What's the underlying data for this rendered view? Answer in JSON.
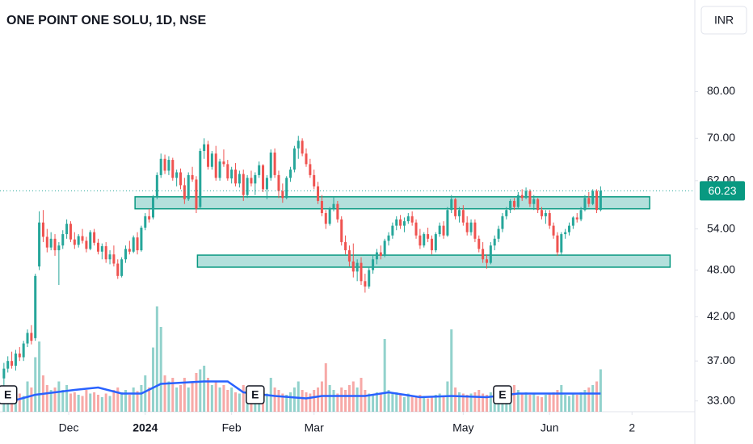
{
  "chart_data": {
    "type": "candlestick",
    "title": "ONE POINT ONE SOLU, 1D, NSE",
    "currency": "INR",
    "log_scale": true,
    "ylim": [
      32,
      104
    ],
    "xlim": [
      -1,
      176
    ],
    "yticks": [
      {
        "value": 33,
        "label": "33.00"
      },
      {
        "value": 37,
        "label": "37.00"
      },
      {
        "value": 42,
        "label": "42.00"
      },
      {
        "value": 48,
        "label": "48.00"
      },
      {
        "value": 54,
        "label": "54.00"
      },
      {
        "value": 62,
        "label": "62.00"
      },
      {
        "value": 70,
        "label": "70.00"
      },
      {
        "value": 80,
        "label": "80.00"
      }
    ],
    "xticks": [
      {
        "value": 16.5,
        "label": "Dec"
      },
      {
        "value": 36,
        "label": "2024",
        "bold": true
      },
      {
        "value": 58,
        "label": "Feb"
      },
      {
        "value": 79,
        "label": "Mar"
      },
      {
        "value": 117,
        "label": "May"
      },
      {
        "value": 139,
        "label": "Jun"
      },
      {
        "value": 160,
        "label": "2"
      }
    ],
    "up_color": "#26a69a",
    "down_color": "#ef5350",
    "candles": [
      [
        35.2,
        36.8,
        34.5,
        36.2
      ],
      [
        36.2,
        37.5,
        35.8,
        37.0
      ],
      [
        37.0,
        38.0,
        36.2,
        36.5
      ],
      [
        36.5,
        38.2,
        36.0,
        37.8
      ],
      [
        37.8,
        38.5,
        37.0,
        37.4
      ],
      [
        37.4,
        39.2,
        37.0,
        38.9
      ],
      [
        38.9,
        40.5,
        38.5,
        40.1
      ],
      [
        40.1,
        41.0,
        38.8,
        39.2
      ],
      [
        39.5,
        47.5,
        39.2,
        47.2
      ],
      [
        48.5,
        56.8,
        48.0,
        55.0
      ],
      [
        55.0,
        57.0,
        52.0,
        52.8
      ],
      [
        52.8,
        54.0,
        50.5,
        51.2
      ],
      [
        51.2,
        53.5,
        50.8,
        52.5
      ],
      [
        52.5,
        53.2,
        50.0,
        50.8
      ],
      [
        50.8,
        52.0,
        46.0,
        51.5
      ],
      [
        51.5,
        53.8,
        51.0,
        53.2
      ],
      [
        53.2,
        55.5,
        52.5,
        54.8
      ],
      [
        54.8,
        55.2,
        52.0,
        52.4
      ],
      [
        52.4,
        53.5,
        51.0,
        51.6
      ],
      [
        51.6,
        53.2,
        51.2,
        52.9
      ],
      [
        52.9,
        54.0,
        51.8,
        52.2
      ],
      [
        52.2,
        52.8,
        50.5,
        51.0
      ],
      [
        51.0,
        53.8,
        50.8,
        53.5
      ],
      [
        53.5,
        54.0,
        51.5,
        51.9
      ],
      [
        51.9,
        52.5,
        50.2,
        50.6
      ],
      [
        50.6,
        51.8,
        49.5,
        51.4
      ],
      [
        51.4,
        52.0,
        49.0,
        49.5
      ],
      [
        49.5,
        50.8,
        48.8,
        50.2
      ],
      [
        50.2,
        51.5,
        48.5,
        48.9
      ],
      [
        48.9,
        49.5,
        46.8,
        47.2
      ],
      [
        47.2,
        49.8,
        47.0,
        49.5
      ],
      [
        49.5,
        51.5,
        49.0,
        51.0
      ],
      [
        51.0,
        52.2,
        50.2,
        50.6
      ],
      [
        50.6,
        53.0,
        50.4,
        52.7
      ],
      [
        52.7,
        53.5,
        50.2,
        50.8
      ],
      [
        50.8,
        54.5,
        50.6,
        54.2
      ],
      [
        54.2,
        56.5,
        53.8,
        56.0
      ],
      [
        56.0,
        57.2,
        55.0,
        55.5
      ],
      [
        55.8,
        59.5,
        55.5,
        59.2
      ],
      [
        59.2,
        63.5,
        58.8,
        63.0
      ],
      [
        63.0,
        67.0,
        62.5,
        66.0
      ],
      [
        66.0,
        66.8,
        63.2,
        63.8
      ],
      [
        63.8,
        66.5,
        63.0,
        65.8
      ],
      [
        65.8,
        66.2,
        62.0,
        62.5
      ],
      [
        62.5,
        64.0,
        61.0,
        63.5
      ],
      [
        63.5,
        64.2,
        60.5,
        61.2
      ],
      [
        61.2,
        62.5,
        58.0,
        58.8
      ],
      [
        58.8,
        63.5,
        58.5,
        63.0
      ],
      [
        63.0,
        64.5,
        61.8,
        62.2
      ],
      [
        62.2,
        62.8,
        56.5,
        57.2
      ],
      [
        57.5,
        68.0,
        57.2,
        67.5
      ],
      [
        67.5,
        70.0,
        66.0,
        68.8
      ],
      [
        68.8,
        69.5,
        64.0,
        64.5
      ],
      [
        64.5,
        67.5,
        64.0,
        67.0
      ],
      [
        67.0,
        68.5,
        62.0,
        62.5
      ],
      [
        62.5,
        66.0,
        62.0,
        65.5
      ],
      [
        65.5,
        67.8,
        64.5,
        65.0
      ],
      [
        65.0,
        65.8,
        62.0,
        62.4
      ],
      [
        62.4,
        64.5,
        61.5,
        64.0
      ],
      [
        64.0,
        65.2,
        61.0,
        61.5
      ],
      [
        61.5,
        63.8,
        60.8,
        63.2
      ],
      [
        63.2,
        64.0,
        58.5,
        59.5
      ],
      [
        59.5,
        63.0,
        59.0,
        62.5
      ],
      [
        62.5,
        63.8,
        61.0,
        61.5
      ],
      [
        61.5,
        63.5,
        59.5,
        63.0
      ],
      [
        63.0,
        65.5,
        62.5,
        64.8
      ],
      [
        64.8,
        65.0,
        60.0,
        60.5
      ],
      [
        60.5,
        63.0,
        58.8,
        62.5
      ],
      [
        62.5,
        67.8,
        62.0,
        67.2
      ],
      [
        67.2,
        68.0,
        62.5,
        63.0
      ],
      [
        63.0,
        63.8,
        59.0,
        60.2
      ],
      [
        60.2,
        61.5,
        58.2,
        59.0
      ],
      [
        59.0,
        62.8,
        58.8,
        62.5
      ],
      [
        62.5,
        64.5,
        61.8,
        64.0
      ],
      [
        64.0,
        68.5,
        63.5,
        68.0
      ],
      [
        68.0,
        70.5,
        66.0,
        69.5
      ],
      [
        69.5,
        70.0,
        66.5,
        67.0
      ],
      [
        67.0,
        68.0,
        64.5,
        65.0
      ],
      [
        65.0,
        66.0,
        62.5,
        63.0
      ],
      [
        63.0,
        64.0,
        60.5,
        61.0
      ],
      [
        61.0,
        61.8,
        58.0,
        58.5
      ],
      [
        58.5,
        59.5,
        56.0,
        56.5
      ],
      [
        56.5,
        57.0,
        54.0,
        54.8
      ],
      [
        54.8,
        57.5,
        54.5,
        57.2
      ],
      [
        57.2,
        59.2,
        56.8,
        58.0
      ],
      [
        58.0,
        58.5,
        55.0,
        55.5
      ],
      [
        55.5,
        56.0,
        51.5,
        52.0
      ],
      [
        52.0,
        53.0,
        50.2,
        50.8
      ],
      [
        50.8,
        51.5,
        48.5,
        49.2
      ],
      [
        49.2,
        51.8,
        47.0,
        47.8
      ],
      [
        47.8,
        49.5,
        46.5,
        49.0
      ],
      [
        49.0,
        49.8,
        46.0,
        46.5
      ],
      [
        46.5,
        47.5,
        45.0,
        45.8
      ],
      [
        45.8,
        48.5,
        45.5,
        48.0
      ],
      [
        48.0,
        50.0,
        47.5,
        49.5
      ],
      [
        49.5,
        51.0,
        48.8,
        50.5
      ],
      [
        50.5,
        51.5,
        49.5,
        50.0
      ],
      [
        50.0,
        52.5,
        49.8,
        52.2
      ],
      [
        52.2,
        53.5,
        51.5,
        53.0
      ],
      [
        53.0,
        55.0,
        52.5,
        54.5
      ],
      [
        54.5,
        56.0,
        53.8,
        55.5
      ],
      [
        55.5,
        56.2,
        54.0,
        54.5
      ],
      [
        54.5,
        55.8,
        53.5,
        55.2
      ],
      [
        55.2,
        56.5,
        54.8,
        56.0
      ],
      [
        56.0,
        56.8,
        54.5,
        55.0
      ],
      [
        55.0,
        55.5,
        52.5,
        53.0
      ],
      [
        53.0,
        54.0,
        51.0,
        51.5
      ],
      [
        51.5,
        53.5,
        51.2,
        53.2
      ],
      [
        53.2,
        54.2,
        52.0,
        52.5
      ],
      [
        52.5,
        53.0,
        50.2,
        50.8
      ],
      [
        50.8,
        53.5,
        50.5,
        53.2
      ],
      [
        53.2,
        55.0,
        52.8,
        54.5
      ],
      [
        54.5,
        55.2,
        52.5,
        53.0
      ],
      [
        53.0,
        57.5,
        52.8,
        57.0
      ],
      [
        57.0,
        59.5,
        56.5,
        58.8
      ],
      [
        58.8,
        59.0,
        55.5,
        56.0
      ],
      [
        56.0,
        57.5,
        55.0,
        57.0
      ],
      [
        57.0,
        57.8,
        54.5,
        55.0
      ],
      [
        55.0,
        56.0,
        53.0,
        53.5
      ],
      [
        53.5,
        55.5,
        53.0,
        55.0
      ],
      [
        55.0,
        55.5,
        52.0,
        52.5
      ],
      [
        52.5,
        53.0,
        50.5,
        51.0
      ],
      [
        51.0,
        52.0,
        49.0,
        49.5
      ],
      [
        49.5,
        50.2,
        48.2,
        49.0
      ],
      [
        49.0,
        52.0,
        48.8,
        51.5
      ],
      [
        51.5,
        53.0,
        50.8,
        52.5
      ],
      [
        52.5,
        54.5,
        52.0,
        54.0
      ],
      [
        54.0,
        56.5,
        53.5,
        56.0
      ],
      [
        56.0,
        57.5,
        55.5,
        57.0
      ],
      [
        57.0,
        58.8,
        56.5,
        58.5
      ],
      [
        58.5,
        59.0,
        57.0,
        57.5
      ],
      [
        57.5,
        60.0,
        57.2,
        59.5
      ],
      [
        59.5,
        60.5,
        58.5,
        59.0
      ],
      [
        59.0,
        60.8,
        58.8,
        60.2
      ],
      [
        60.2,
        60.5,
        57.5,
        58.0
      ],
      [
        58.0,
        59.5,
        57.0,
        58.8
      ],
      [
        58.8,
        59.0,
        56.5,
        57.0
      ],
      [
        57.0,
        57.5,
        55.5,
        56.0
      ],
      [
        56.0,
        57.0,
        54.8,
        56.5
      ],
      [
        56.5,
        57.0,
        54.0,
        54.5
      ],
      [
        54.5,
        55.0,
        52.5,
        53.0
      ],
      [
        53.0,
        53.5,
        50.0,
        50.5
      ],
      [
        50.5,
        53.5,
        50.2,
        53.2
      ],
      [
        53.2,
        54.0,
        52.5,
        53.5
      ],
      [
        53.5,
        55.0,
        53.0,
        54.5
      ],
      [
        54.5,
        56.0,
        54.0,
        55.8
      ],
      [
        55.8,
        56.5,
        55.0,
        55.5
      ],
      [
        55.5,
        57.5,
        55.2,
        57.0
      ],
      [
        57.0,
        59.5,
        56.8,
        59.0
      ],
      [
        59.0,
        60.0,
        57.5,
        58.0
      ],
      [
        58.0,
        60.5,
        57.8,
        60.2
      ],
      [
        60.2,
        60.5,
        56.5,
        57.0
      ],
      [
        57.0,
        61.0,
        56.8,
        60.23
      ]
    ],
    "last_price_label": "60.23",
    "volume_lim": [
      0,
      10
    ],
    "volumes": [
      0.8,
      1.0,
      1.2,
      0.9,
      1.5,
      1.3,
      2.5,
      2.0,
      4.5,
      5.8,
      3.0,
      2.2,
      1.8,
      2.0,
      2.5,
      1.8,
      2.2,
      1.5,
      1.6,
      1.4,
      1.3,
      1.8,
      1.5,
      1.6,
      1.4,
      1.2,
      1.5,
      1.3,
      1.8,
      2.0,
      1.6,
      1.8,
      1.4,
      2.0,
      1.7,
      2.2,
      3.0,
      2.0,
      5.3,
      8.7,
      7.0,
      3.0,
      2.5,
      2.8,
      2.0,
      2.2,
      2.8,
      2.0,
      2.5,
      3.2,
      3.5,
      3.8,
      2.8,
      2.2,
      2.5,
      2.0,
      2.2,
      1.8,
      2.0,
      1.6,
      1.5,
      2.2,
      1.5,
      1.4,
      1.3,
      1.8,
      1.6,
      1.5,
      2.8,
      2.0,
      1.8,
      1.5,
      1.4,
      1.6,
      2.0,
      2.5,
      1.8,
      1.6,
      1.5,
      1.8,
      2.0,
      2.5,
      4.0,
      2.2,
      1.8,
      1.5,
      2.0,
      1.8,
      2.2,
      2.5,
      2.0,
      2.8,
      1.8,
      1.5,
      1.4,
      1.6,
      1.5,
      6.0,
      1.8,
      1.5,
      1.6,
      1.4,
      1.2,
      1.5,
      1.3,
      1.2,
      1.4,
      1.3,
      1.1,
      1.2,
      1.4,
      1.5,
      1.3,
      2.5,
      6.8,
      2.0,
      1.6,
      1.5,
      1.4,
      1.5,
      1.6,
      1.8,
      1.5,
      1.4,
      1.6,
      1.3,
      1.5,
      1.8,
      1.6,
      1.5,
      2.2,
      1.8,
      1.5,
      1.6,
      1.4,
      1.5,
      1.3,
      1.2,
      1.4,
      1.5,
      1.6,
      1.8,
      2.2,
      1.4,
      1.3,
      1.5,
      1.4,
      1.6,
      1.8,
      2.0,
      2.2,
      2.5,
      3.5
    ],
    "volume_ma": {
      "color": "#2962ff",
      "x": [
        0,
        8,
        18,
        24,
        30,
        35,
        40,
        51,
        57,
        61,
        69,
        77,
        81,
        92,
        98,
        106,
        114,
        123,
        131,
        152
      ],
      "values": [
        0.7,
        1.4,
        1.8,
        2.0,
        1.5,
        1.5,
        2.3,
        2.5,
        2.5,
        1.6,
        1.3,
        1.1,
        1.3,
        1.3,
        1.6,
        1.2,
        1.3,
        1.2,
        1.5,
        1.5
      ]
    },
    "zones": [
      {
        "x": [
          33.4,
          164.5
        ],
        "y": [
          57.2,
          59.2
        ]
      },
      {
        "x": [
          49.3,
          169.7
        ],
        "y": [
          48.4,
          50.1
        ]
      }
    ],
    "events": [
      {
        "x": 1,
        "label": "E"
      },
      {
        "x": 64,
        "label": "E"
      },
      {
        "x": 127,
        "label": "E"
      }
    ]
  }
}
